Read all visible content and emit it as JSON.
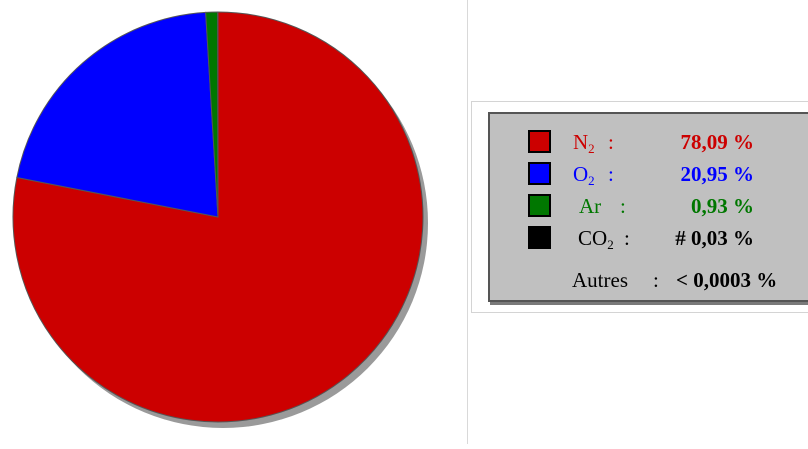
{
  "chart_data": {
    "type": "pie",
    "title": "",
    "slices": [
      {
        "label": "N2",
        "value": 78.09,
        "value_text": "78,09 %",
        "color": "#cc0000"
      },
      {
        "label": "O2",
        "value": 20.95,
        "value_text": "20,95 %",
        "color": "#0000ff"
      },
      {
        "label": "Ar",
        "value": 0.93,
        "value_text": "0,93 %",
        "color": "#007700"
      },
      {
        "label": "CO2",
        "value": 0.03,
        "value_text": "# 0,03 %",
        "color": "#000000"
      }
    ],
    "other": {
      "label": "Autres",
      "value_text": "< 0,0003 %"
    },
    "legend_placement": "right"
  },
  "legend": {
    "rows": [
      {
        "base": "N",
        "sub": "2",
        "colon": ":",
        "pct": "78,09 %",
        "color": "#cc0000"
      },
      {
        "base": "O",
        "sub": "2",
        "colon": ":",
        "pct": "20,95 %",
        "color": "#0000ff"
      },
      {
        "base": "Ar",
        "sub": "",
        "colon": ":",
        "pct": "0,93 %",
        "color": "#007700"
      },
      {
        "base": "CO",
        "sub": "2",
        "colon": ":",
        "pct": "# 0,03 %",
        "color": "#000000"
      }
    ],
    "other_label": "Autres",
    "other_colon": ":",
    "other_pct": "< 0,0003 %"
  }
}
